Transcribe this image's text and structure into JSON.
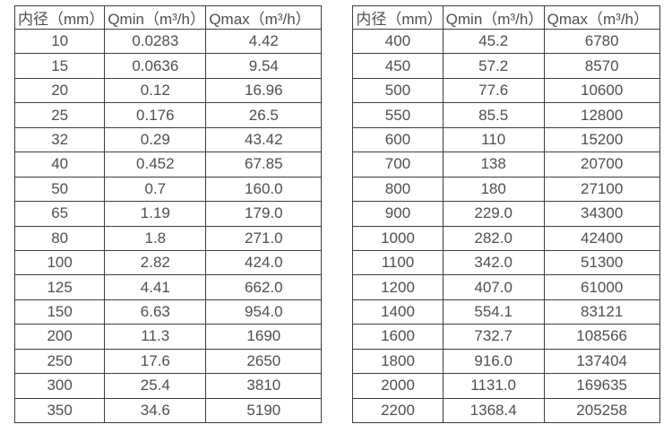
{
  "colors": {
    "border": "#3d3d3d",
    "text": "#4f4f4f",
    "background": "#ffffff"
  },
  "tables": [
    {
      "name": "flow-table-small-diameters",
      "headers": [
        "内径（mm）",
        "Qmin（m³/h）",
        "Qmax（m³/h）"
      ],
      "rows": [
        [
          "10",
          "0.0283",
          "4.42"
        ],
        [
          "15",
          "0.0636",
          "9.54"
        ],
        [
          "20",
          "0.12",
          "16.96"
        ],
        [
          "25",
          "0.176",
          "26.5"
        ],
        [
          "32",
          "0.29",
          "43.42"
        ],
        [
          "40",
          "0.452",
          "67.85"
        ],
        [
          "50",
          "0.7",
          "160.0"
        ],
        [
          "65",
          "1.19",
          "179.0"
        ],
        [
          "80",
          "1.8",
          "271.0"
        ],
        [
          "100",
          "2.82",
          "424.0"
        ],
        [
          "125",
          "4.41",
          "662.0"
        ],
        [
          "150",
          "6.63",
          "954.0"
        ],
        [
          "200",
          "11.3",
          "1690"
        ],
        [
          "250",
          "17.6",
          "2650"
        ],
        [
          "300",
          "25.4",
          "3810"
        ],
        [
          "350",
          "34.6",
          "5190"
        ]
      ]
    },
    {
      "name": "flow-table-large-diameters",
      "headers": [
        "内径（mm）",
        "Qmin（m³/h）",
        "Qmax（m³/h）"
      ],
      "rows": [
        [
          "400",
          "45.2",
          "6780"
        ],
        [
          "450",
          "57.2",
          "8570"
        ],
        [
          "500",
          "77.6",
          "10600"
        ],
        [
          "550",
          "85.5",
          "12800"
        ],
        [
          "600",
          "110",
          "15200"
        ],
        [
          "700",
          "138",
          "20700"
        ],
        [
          "800",
          "180",
          "27100"
        ],
        [
          "900",
          "229.0",
          "34300"
        ],
        [
          "1000",
          "282.0",
          "42400"
        ],
        [
          "1100",
          "342.0",
          "51300"
        ],
        [
          "1200",
          "407.0",
          "61000"
        ],
        [
          "1400",
          "554.1",
          "83121"
        ],
        [
          "1600",
          "732.7",
          "108566"
        ],
        [
          "1800",
          "916.0",
          "137404"
        ],
        [
          "2000",
          "1131.0",
          "169635"
        ],
        [
          "2200",
          "1368.4",
          "205258"
        ]
      ]
    }
  ]
}
